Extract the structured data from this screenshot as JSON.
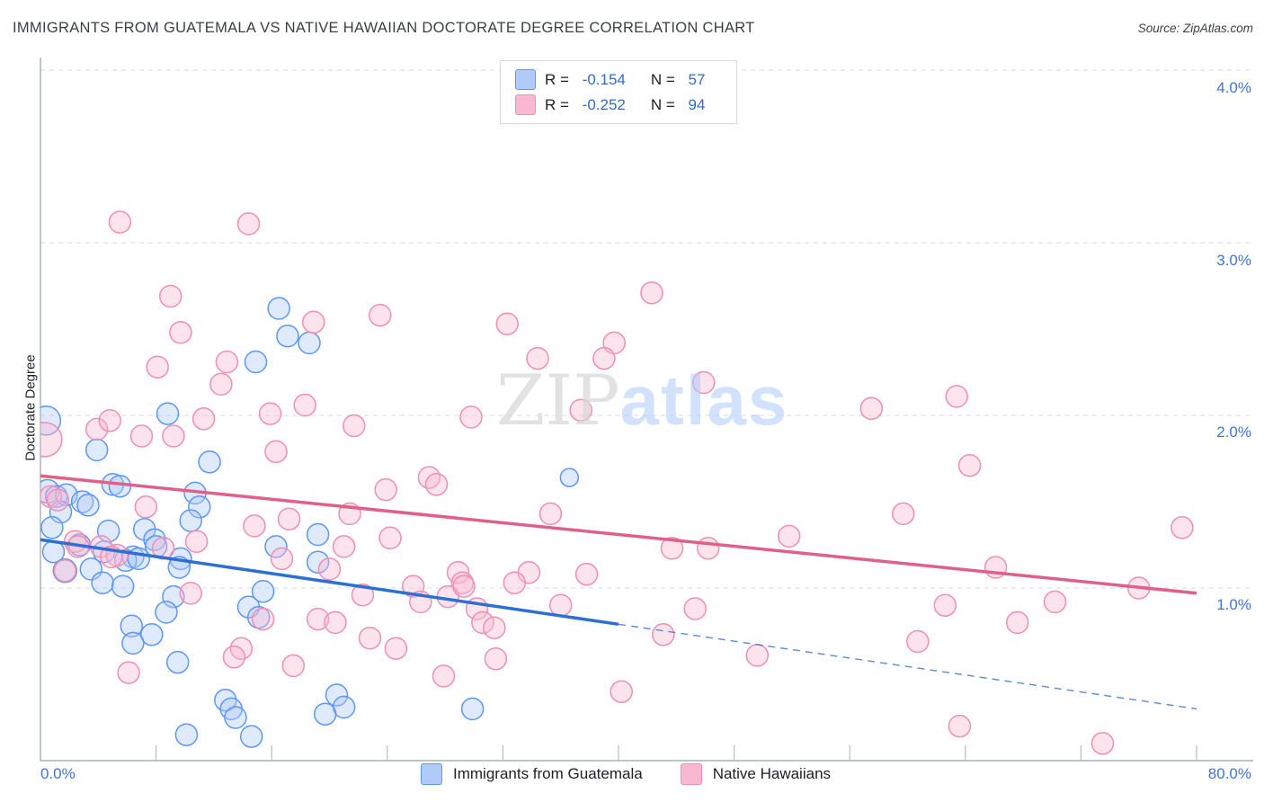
{
  "title": "IMMIGRANTS FROM GUATEMALA VS NATIVE HAWAIIAN DOCTORATE DEGREE CORRELATION CHART",
  "source": "Source: ZipAtlas.com",
  "watermark": {
    "zip": "ZIP",
    "atlas": "atlas"
  },
  "colors": {
    "blue_fill": "#aecbfa",
    "blue_stroke": "#5e97f6",
    "blue_line": "#2d6fd3",
    "pink_fill": "#f9b8cf",
    "pink_stroke": "#f08fb4",
    "pink_line": "#e0608a",
    "grid": "#d6d9dc",
    "axis": "#9aa0a6",
    "tick": "#b7bbbf",
    "axis_label_blue": "#3f74d9"
  },
  "legend_box": {
    "rows": [
      {
        "r_label": "R = ",
        "r_value": "-0.154",
        "n_label": "N = ",
        "n_value": "57",
        "swatch_fill": "#aecbfa",
        "swatch_border": "#5e97f6"
      },
      {
        "r_label": "R = ",
        "r_value": "-0.252",
        "n_label": "N = ",
        "n_value": "94",
        "swatch_fill": "#f9b8cf",
        "swatch_border": "#f08fb4"
      }
    ]
  },
  "bottom_legend": [
    {
      "label": "Immigrants from Guatemala",
      "swatch_fill": "#aecbfa",
      "swatch_border": "#5e97f6"
    },
    {
      "label": "Native Hawaiians",
      "swatch_fill": "#f9b8cf",
      "swatch_border": "#f08fb4"
    }
  ],
  "axes": {
    "y_label": "Doctorate Degree",
    "x_left_label": "0.0%",
    "x_right_label": "80.0%",
    "y_ticks": [
      {
        "label": "4.0%",
        "value": 4
      },
      {
        "label": "3.0%",
        "value": 3
      },
      {
        "label": "2.0%",
        "value": 2
      },
      {
        "label": "1.0%",
        "value": 1
      }
    ],
    "x_tick_values": [
      8,
      16,
      24,
      32,
      40,
      48,
      56,
      64,
      72,
      80
    ]
  },
  "chart_data": {
    "type": "scatter",
    "xlabel": "Immigrants from Guatemala (%)",
    "ylabel": "Doctorate Degree",
    "xlim": [
      0,
      80
    ],
    "ylim": [
      0,
      4.0
    ],
    "grid": "horizontal-dashed",
    "series": [
      {
        "name": "Immigrants from Guatemala",
        "R": -0.154,
        "N": 57,
        "points": [
          [
            0.4,
            1.97,
            16
          ],
          [
            16.5,
            2.62,
            12
          ],
          [
            17.1,
            2.46,
            12
          ],
          [
            18.6,
            2.42,
            12
          ],
          [
            14.9,
            2.31,
            12
          ],
          [
            8.8,
            2.01,
            12
          ],
          [
            3.9,
            1.8,
            12
          ],
          [
            11.7,
            1.73,
            12
          ],
          [
            0.5,
            1.56,
            13
          ],
          [
            1.1,
            1.53,
            12
          ],
          [
            1.8,
            1.54,
            12
          ],
          [
            2.9,
            1.5,
            12
          ],
          [
            3.3,
            1.48,
            12
          ],
          [
            1.4,
            1.44,
            12
          ],
          [
            0.8,
            1.35,
            12
          ],
          [
            4.7,
            1.33,
            12
          ],
          [
            5.0,
            1.6,
            12
          ],
          [
            5.5,
            1.59,
            12
          ],
          [
            10.7,
            1.55,
            12
          ],
          [
            11.0,
            1.47,
            12
          ],
          [
            10.4,
            1.39,
            12
          ],
          [
            7.2,
            1.34,
            12
          ],
          [
            7.9,
            1.28,
            12
          ],
          [
            2.7,
            1.25,
            12
          ],
          [
            4.4,
            1.21,
            12
          ],
          [
            0.9,
            1.21,
            12
          ],
          [
            8.0,
            1.24,
            12
          ],
          [
            6.4,
            1.18,
            12
          ],
          [
            9.7,
            1.17,
            12
          ],
          [
            36.6,
            1.64,
            10
          ],
          [
            19.2,
            1.31,
            12
          ],
          [
            16.3,
            1.24,
            12
          ],
          [
            19.2,
            1.15,
            12
          ],
          [
            1.7,
            1.1,
            13
          ],
          [
            3.5,
            1.11,
            12
          ],
          [
            4.3,
            1.03,
            12
          ],
          [
            5.7,
            1.01,
            12
          ],
          [
            5.9,
            1.16,
            12
          ],
          [
            6.8,
            1.17,
            12
          ],
          [
            9.6,
            1.12,
            12
          ],
          [
            9.2,
            0.95,
            12
          ],
          [
            8.7,
            0.86,
            12
          ],
          [
            6.3,
            0.78,
            12
          ],
          [
            7.7,
            0.73,
            12
          ],
          [
            6.4,
            0.68,
            12
          ],
          [
            9.5,
            0.57,
            12
          ],
          [
            15.4,
            0.98,
            12
          ],
          [
            14.4,
            0.89,
            12
          ],
          [
            15.1,
            0.83,
            12
          ],
          [
            12.8,
            0.35,
            12
          ],
          [
            13.2,
            0.3,
            12
          ],
          [
            13.5,
            0.25,
            12
          ],
          [
            10.1,
            0.15,
            12
          ],
          [
            14.6,
            0.14,
            12
          ],
          [
            20.5,
            0.38,
            12
          ],
          [
            21.0,
            0.31,
            12
          ],
          [
            19.7,
            0.27,
            12
          ],
          [
            29.9,
            0.3,
            12
          ]
        ]
      },
      {
        "name": "Native Hawaiians",
        "R": -0.252,
        "N": 94,
        "points": [
          [
            0.3,
            1.86,
            19
          ],
          [
            5.5,
            3.12,
            12
          ],
          [
            14.4,
            3.11,
            12
          ],
          [
            9.0,
            2.69,
            12
          ],
          [
            9.7,
            2.48,
            12
          ],
          [
            18.9,
            2.54,
            12
          ],
          [
            23.5,
            2.58,
            12
          ],
          [
            12.9,
            2.31,
            12
          ],
          [
            8.1,
            2.28,
            12
          ],
          [
            12.5,
            2.18,
            12
          ],
          [
            3.9,
            1.92,
            12
          ],
          [
            4.8,
            1.97,
            12
          ],
          [
            11.3,
            1.98,
            12
          ],
          [
            7.0,
            1.88,
            12
          ],
          [
            9.2,
            1.88,
            12
          ],
          [
            15.9,
            2.01,
            12
          ],
          [
            18.3,
            2.06,
            12
          ],
          [
            21.7,
            1.94,
            12
          ],
          [
            29.8,
            1.99,
            12
          ],
          [
            16.3,
            1.79,
            12
          ],
          [
            26.9,
            1.64,
            12
          ],
          [
            27.4,
            1.6,
            12
          ],
          [
            23.9,
            1.57,
            12
          ],
          [
            21.4,
            1.43,
            12
          ],
          [
            17.2,
            1.4,
            12
          ],
          [
            14.8,
            1.36,
            12
          ],
          [
            16.7,
            1.17,
            12
          ],
          [
            20.0,
            1.11,
            12
          ],
          [
            21.0,
            1.24,
            12
          ],
          [
            24.2,
            1.29,
            12
          ],
          [
            28.9,
            1.09,
            12
          ],
          [
            29.2,
            1.03,
            12
          ],
          [
            42.3,
            2.71,
            12
          ],
          [
            32.3,
            2.53,
            12
          ],
          [
            39.7,
            2.42,
            12
          ],
          [
            34.4,
            2.33,
            12
          ],
          [
            39.0,
            2.33,
            12
          ],
          [
            45.9,
            2.19,
            12
          ],
          [
            37.4,
            2.03,
            12
          ],
          [
            35.3,
            1.43,
            12
          ],
          [
            43.7,
            1.23,
            12
          ],
          [
            46.2,
            1.23,
            12
          ],
          [
            51.8,
            1.3,
            12
          ],
          [
            33.8,
            1.09,
            12
          ],
          [
            37.8,
            1.08,
            12
          ],
          [
            32.8,
            1.03,
            12
          ],
          [
            57.5,
            2.04,
            12
          ],
          [
            63.4,
            2.11,
            12
          ],
          [
            64.3,
            1.71,
            12
          ],
          [
            59.7,
            1.43,
            12
          ],
          [
            79.0,
            1.35,
            12
          ],
          [
            66.1,
            1.12,
            12
          ],
          [
            76.0,
            1.0,
            12
          ],
          [
            62.6,
            0.9,
            12
          ],
          [
            70.2,
            0.92,
            12
          ],
          [
            67.6,
            0.8,
            12
          ],
          [
            60.7,
            0.69,
            12
          ],
          [
            63.6,
            0.2,
            12
          ],
          [
            73.5,
            0.1,
            12
          ],
          [
            7.3,
            1.47,
            12
          ],
          [
            2.4,
            1.27,
            12
          ],
          [
            2.6,
            1.24,
            12
          ],
          [
            4.2,
            1.24,
            12
          ],
          [
            5.3,
            1.19,
            12
          ],
          [
            8.5,
            1.23,
            12
          ],
          [
            10.8,
            1.27,
            12
          ],
          [
            0.7,
            1.53,
            12
          ],
          [
            1.2,
            1.51,
            12
          ],
          [
            10.4,
            0.97,
            12
          ],
          [
            15.4,
            0.82,
            12
          ],
          [
            13.9,
            0.65,
            12
          ],
          [
            13.4,
            0.6,
            12
          ],
          [
            17.5,
            0.55,
            12
          ],
          [
            6.1,
            0.51,
            12
          ],
          [
            1.7,
            1.1,
            12
          ],
          [
            4.9,
            1.18,
            12
          ],
          [
            22.3,
            0.96,
            12
          ],
          [
            25.8,
            1.01,
            12
          ],
          [
            26.3,
            0.92,
            12
          ],
          [
            28.2,
            0.95,
            12
          ],
          [
            29.3,
            1.01,
            12
          ],
          [
            30.2,
            0.88,
            12
          ],
          [
            30.6,
            0.8,
            12
          ],
          [
            31.4,
            0.77,
            12
          ],
          [
            36.0,
            0.9,
            12
          ],
          [
            19.2,
            0.82,
            12
          ],
          [
            20.4,
            0.8,
            12
          ],
          [
            22.8,
            0.71,
            12
          ],
          [
            24.6,
            0.65,
            12
          ],
          [
            31.5,
            0.59,
            12
          ],
          [
            27.9,
            0.49,
            12
          ],
          [
            45.3,
            0.88,
            12
          ],
          [
            43.1,
            0.73,
            12
          ],
          [
            49.6,
            0.61,
            12
          ],
          [
            40.2,
            0.4,
            12
          ]
        ]
      }
    ],
    "trendlines": [
      {
        "series": "Immigrants from Guatemala",
        "solid": [
          [
            0,
            1.28
          ],
          [
            40,
            0.79
          ]
        ],
        "dashed": [
          [
            40,
            0.79
          ],
          [
            80,
            0.3
          ]
        ]
      },
      {
        "series": "Native Hawaiians",
        "solid": [
          [
            0,
            1.65
          ],
          [
            80,
            0.97
          ]
        ],
        "dashed": null
      }
    ]
  }
}
